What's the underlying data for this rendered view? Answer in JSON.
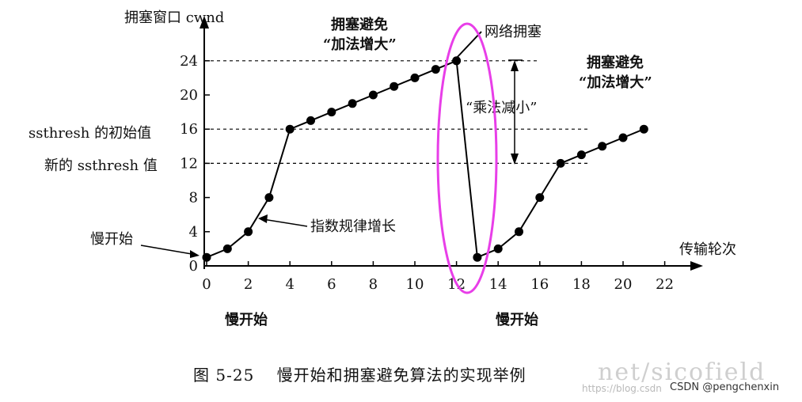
{
  "chart_data": {
    "type": "line",
    "ylabel": "拥塞窗口 cwnd",
    "xlabel": "传输轮次",
    "xlim": [
      0,
      22
    ],
    "ylim": [
      0,
      26
    ],
    "x_ticks": [
      0,
      2,
      4,
      6,
      8,
      10,
      12,
      14,
      16,
      18,
      20,
      22
    ],
    "y_ticks": [
      0,
      4,
      8,
      12,
      16,
      20,
      24
    ],
    "series": [
      {
        "x": [
          0,
          1,
          2,
          3,
          4,
          5,
          6,
          7,
          8,
          9,
          10,
          11,
          12,
          13,
          14,
          15,
          16,
          17,
          18,
          19,
          20,
          21
        ],
        "y": [
          1,
          2,
          4,
          8,
          16,
          17,
          18,
          19,
          20,
          21,
          22,
          23,
          24,
          1,
          2,
          4,
          8,
          12,
          13,
          14,
          15,
          16
        ]
      }
    ],
    "reference_lines": [
      {
        "y": 24,
        "x_end": 16
      },
      {
        "y": 16,
        "label": "ssthresh 的初始值"
      },
      {
        "y": 12,
        "label": "新的 ssthresh 值"
      }
    ],
    "annotations": {
      "slow_start_point": "慢开始",
      "exponential": "指数规律增长",
      "ca1_line1": "拥塞避免",
      "ca1_line2": "“加法增大”",
      "congestion": "网络拥塞",
      "mult_decrease": "“乘法减小”",
      "ca2_line1": "拥塞避免",
      "ca2_line2": "“加法增大”",
      "slow_start_1": "慢开始",
      "slow_start_2": "慢开始"
    },
    "highlight_color": "#e83ee8"
  },
  "caption": "图 5-25　 慢开始和拥塞避免算法的实现举例",
  "watermarks": {
    "big": "net/sicofield",
    "small": "https://blog.csdn",
    "csdn": "CSDN @pengchenxin"
  }
}
